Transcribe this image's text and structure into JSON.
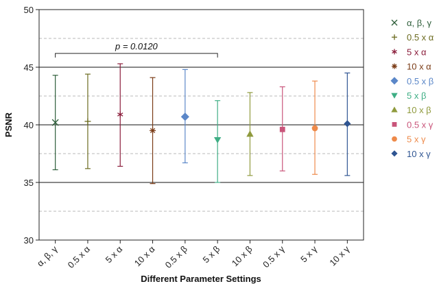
{
  "chart_data": {
    "type": "scatter",
    "title": "",
    "xlabel": "Different Parameter Settings",
    "ylabel": "PSNR",
    "ylim": [
      30,
      50
    ],
    "yticks": [
      30,
      35,
      40,
      45,
      50
    ],
    "major_grid": [
      35,
      40,
      45
    ],
    "minor_grid": [
      32.5,
      37.5,
      42.5,
      47.5
    ],
    "categories": [
      "α, β, γ",
      "0.5 x α",
      "5 x α",
      "10 x α",
      "0.5 x β",
      "5 x β",
      "10 x β",
      "0.5 x γ",
      "5 x γ",
      "10 x γ"
    ],
    "legend_position": "right",
    "series": [
      {
        "name": "α, β, γ",
        "mean": 40.2,
        "low": 36.1,
        "high": 44.3,
        "marker": "x",
        "color": "#2e5e3a"
      },
      {
        "name": "0.5 x α",
        "mean": 40.3,
        "low": 36.2,
        "high": 44.4,
        "marker": "plus",
        "color": "#6b6a1e"
      },
      {
        "name": "5 x α",
        "mean": 40.9,
        "low": 36.4,
        "high": 45.3,
        "marker": "star",
        "color": "#8a1c3a"
      },
      {
        "name": "10 x α",
        "mean": 39.5,
        "low": 34.9,
        "high": 44.1,
        "marker": "asterisk",
        "color": "#7a3b16"
      },
      {
        "name": "0.5 x β",
        "mean": 40.7,
        "low": 36.7,
        "high": 44.8,
        "marker": "diamond",
        "color": "#5b87c8"
      },
      {
        "name": "5 x β",
        "mean": 38.7,
        "low": 35.0,
        "high": 42.1,
        "marker": "triangle-down",
        "color": "#3fae85"
      },
      {
        "name": "10 x β",
        "mean": 39.2,
        "low": 35.6,
        "high": 42.8,
        "marker": "triangle-up",
        "color": "#8f9a3d"
      },
      {
        "name": "0.5 x γ",
        "mean": 39.6,
        "low": 36.0,
        "high": 43.3,
        "marker": "square",
        "color": "#c9557a"
      },
      {
        "name": "5 x γ",
        "mean": 39.7,
        "low": 35.7,
        "high": 43.8,
        "marker": "circle",
        "color": "#ee8a4a"
      },
      {
        "name": "10 x γ",
        "mean": 40.1,
        "low": 35.6,
        "high": 44.5,
        "marker": "small-diamond",
        "color": "#2f5592"
      }
    ],
    "annotation": {
      "text": "p = 0.0120",
      "from_category": 0,
      "to_category": 5,
      "y": 46.2
    }
  }
}
